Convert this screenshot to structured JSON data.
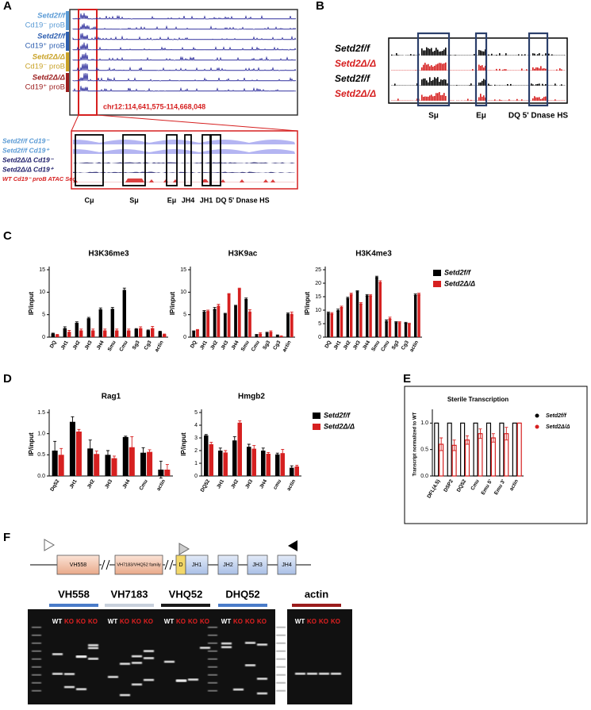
{
  "panel_labels": [
    "A",
    "B",
    "C",
    "D",
    "E",
    "F"
  ],
  "panel_a": {
    "tracks": [
      {
        "genotype": "Setd2f/f",
        "cells": "Cd19⁻ proB",
        "color": "#5b9bd5"
      },
      {
        "genotype": "Setd2f/f",
        "cells": "Cd19⁺ proB",
        "color": "#2e5fb0"
      },
      {
        "genotype": "Setd2Δ/Δ",
        "cells": "Cd19⁻ proB",
        "color": "#c9a227"
      },
      {
        "genotype": "Setd2Δ/Δ",
        "cells": "Cd19⁺ proB",
        "color": "#9b1c1c"
      }
    ],
    "locus": "chr12:114,641,575-114,668,048",
    "zoom_tracks": [
      {
        "label": "Setd2f/f Cd19⁻",
        "color": "#5b9bd5"
      },
      {
        "label": "Setd2f/f Cd19⁺",
        "color": "#5b9bd5"
      },
      {
        "label": "Setd2Δ/Δ Cd19⁻",
        "color": "#1f1f6b"
      },
      {
        "label": "Setd2Δ/Δ Cd19⁺",
        "color": "#1f1f6b"
      },
      {
        "label": "WT Cd19⁻ proB ATAC Seq",
        "color": "#d62020"
      }
    ],
    "regions": [
      "Cμ",
      "Sμ",
      "Eμ",
      "JH4",
      "JH1",
      "DQ 5' Dnase HS"
    ]
  },
  "panel_b": {
    "tracks": [
      {
        "label": "Setd2f/f",
        "color": "#000000"
      },
      {
        "label": "Setd2Δ/Δ",
        "color": "#d62020"
      },
      {
        "label": "Setd2f/f",
        "color": "#000000"
      },
      {
        "label": "Setd2Δ/Δ",
        "color": "#d62020"
      }
    ],
    "regions": [
      "Sμ",
      "Eμ",
      "DQ 5' Dnase HS"
    ]
  },
  "chart_data": [
    {
      "type": "bar",
      "title": "H3K36me3",
      "ylabel": "IP/input",
      "categories": [
        "DQ",
        "JH1",
        "JH2",
        "JH3",
        "JH4",
        "Smu",
        "Cmu",
        "Sg3",
        "Cg3",
        "actin"
      ],
      "series": [
        {
          "name": "Setd2f/f",
          "color": "#000000",
          "values": [
            0.8,
            2,
            3.2,
            4.2,
            6.2,
            6.3,
            10.5,
            1.8,
            1.5,
            1.2
          ],
          "errors": [
            0.1,
            0.3,
            0.2,
            0.2,
            0.3,
            0.3,
            0.4,
            0.1,
            0.1,
            0.1
          ]
        },
        {
          "name": "Setd2Δ/Δ",
          "color": "#d62020",
          "values": [
            0.5,
            1.2,
            1.5,
            1.5,
            1.5,
            1.5,
            1.5,
            2,
            2,
            0.6
          ],
          "errors": [
            0.1,
            0.3,
            0.3,
            0.3,
            0.3,
            0.3,
            0.3,
            0.3,
            0.4,
            0.1
          ]
        }
      ],
      "ylim": [
        0,
        15
      ],
      "yticks": [
        0,
        5,
        10,
        15
      ]
    },
    {
      "type": "bar",
      "title": "H3K9ac",
      "ylabel": "IP/input",
      "categories": [
        "DQ",
        "JH1",
        "JH2",
        "JH3",
        "JH4",
        "Smu",
        "Cmu",
        "Sg3",
        "Cg3",
        "actin"
      ],
      "series": [
        {
          "name": "Setd2f/f",
          "color": "#000000",
          "values": [
            1.3,
            5.7,
            6.3,
            5.2,
            7,
            8.5,
            0.5,
            1,
            0.4,
            5.2
          ],
          "errors": [
            0.1,
            0.2,
            0.3,
            0.1,
            0.1,
            0.2,
            0.1,
            0.1,
            0.1,
            0.2
          ]
        },
        {
          "name": "Setd2Δ/Δ",
          "color": "#d62020",
          "values": [
            1.6,
            5.8,
            7,
            9.6,
            10.8,
            5.7,
            0.8,
            1.2,
            0.2,
            5.2
          ],
          "errors": [
            0.1,
            0.2,
            0.3,
            0.1,
            0.1,
            0.4,
            0.2,
            0.2,
            0.1,
            0.4
          ]
        }
      ],
      "ylim": [
        0,
        15
      ],
      "yticks": [
        0,
        5,
        10,
        15
      ]
    },
    {
      "type": "bar",
      "title": "H3K4me3",
      "ylabel": "IP/input",
      "categories": [
        "DQ",
        "JH1",
        "JH2",
        "JH3",
        "JH4",
        "Smu",
        "Cmu",
        "Sg3",
        "Cg3",
        "actin"
      ],
      "series": [
        {
          "name": "Setd2f/f",
          "color": "#000000",
          "values": [
            9,
            10,
            14.5,
            17,
            15.5,
            22.3,
            6,
            5.5,
            5.3,
            15.7
          ],
          "errors": [
            0.3,
            0.4,
            0.3,
            0.2,
            0.3,
            0.3,
            0.4,
            0.2,
            0.2,
            0.3
          ]
        },
        {
          "name": "Setd2Δ/Δ",
          "color": "#d62020",
          "values": [
            8.8,
            11.2,
            16,
            12.5,
            15.5,
            20.5,
            7,
            5.5,
            5,
            16
          ],
          "errors": [
            0.3,
            0.3,
            0.3,
            0.3,
            0.3,
            0.4,
            0.4,
            0.2,
            0.2,
            0.3
          ]
        }
      ],
      "ylim": [
        0,
        25
      ],
      "yticks": [
        0,
        5,
        10,
        15,
        20,
        25
      ],
      "legend": "right"
    },
    {
      "type": "bar",
      "title": "Rag1",
      "ylabel": "IP/input",
      "categories": [
        "Dq52",
        "JH1",
        "JH2",
        "JH3",
        "JH4",
        "Cmu",
        "actin"
      ],
      "series": [
        {
          "name": "Setd2f/f",
          "color": "#000000",
          "values": [
            0.6,
            1.28,
            0.65,
            0.5,
            0.92,
            0.55,
            0.15
          ],
          "errors": [
            0.22,
            0.12,
            0.2,
            0.1,
            0.02,
            0.12,
            0.2
          ]
        },
        {
          "name": "Setd2Δ/Δ",
          "color": "#d62020",
          "values": [
            0.5,
            1.05,
            0.52,
            0.42,
            0.68,
            0.57,
            0.15
          ],
          "errors": [
            0.15,
            0.05,
            0.07,
            0.05,
            0.25,
            0.05,
            0.12
          ]
        }
      ],
      "ylim": [
        0,
        1.5
      ],
      "yticks": [
        {
          "value": 0,
          "label": "0.0"
        },
        0.5,
        {
          "value": 1,
          "label": "1.0"
        },
        1.5
      ]
    },
    {
      "type": "bar",
      "title": "Hmgb2",
      "ylabel": "IP/input",
      "categories": [
        "DQ52",
        "JH1",
        "JH2",
        "JH3",
        "JH4",
        "cmu",
        "actin"
      ],
      "series": [
        {
          "name": "Setd2f/f",
          "color": "#000000",
          "values": [
            3.2,
            2.0,
            2.8,
            2.3,
            2.0,
            1.7,
            0.65
          ],
          "errors": [
            0.07,
            0.2,
            0.3,
            0.2,
            0.2,
            0.1,
            0.15
          ]
        },
        {
          "name": "Setd2Δ/Δ",
          "color": "#d62020",
          "values": [
            2.5,
            1.85,
            4.2,
            2.15,
            1.75,
            1.8,
            0.75
          ],
          "errors": [
            0.15,
            0.15,
            0.15,
            0.25,
            0.1,
            0.3,
            0.1
          ]
        }
      ],
      "ylim": [
        0,
        5
      ],
      "yticks": [
        0,
        1,
        2,
        3,
        4,
        5
      ],
      "legend": "right"
    },
    {
      "type": "bar",
      "title": "Sterile Transcription",
      "ylabel": "Transcript normalized to WT",
      "bar_style": "outline",
      "categories": [
        "DFL(4.5)",
        "DSP2",
        "DQ52",
        "Cmu",
        "Emu 5'",
        "Emu 3'",
        "actin"
      ],
      "series": [
        {
          "name": "Setd2f/f",
          "color": "#000000",
          "values": [
            1,
            1,
            1,
            1,
            1,
            1,
            1
          ]
        },
        {
          "name": "Setd2Δ/Δ",
          "color": "#d62020",
          "values": [
            0.6,
            0.58,
            0.68,
            0.8,
            0.72,
            0.8,
            1.0
          ],
          "errors": [
            0.12,
            0.1,
            0.08,
            0.09,
            0.08,
            0.12,
            0.0
          ]
        }
      ],
      "ylim": [
        0,
        1.2
      ],
      "yticks": [
        {
          "value": 0,
          "label": "0.0"
        },
        0.5,
        {
          "value": 1,
          "label": "1.0"
        }
      ],
      "legend": "right"
    }
  ],
  "panel_f": {
    "segments": [
      "VH558",
      "VH7183/VHQ52 family",
      "D",
      "JH1",
      "JH2",
      "JH3",
      "JH4"
    ],
    "gels": [
      {
        "primer": "VH558",
        "color": "#4a7cc9",
        "lanes": [
          "WT",
          "KO",
          "KO",
          "KO"
        ]
      },
      {
        "primer": "VH7183",
        "color": "#c8d0dc",
        "lanes": [
          "WT",
          "KO",
          "KO",
          "KO"
        ]
      },
      {
        "primer": "VHQ52",
        "color": "#1a1a1a",
        "lanes": [
          "WT",
          "KO",
          "KO",
          "KO"
        ]
      },
      {
        "primer": "DHQ52",
        "color": "#4a7cc9",
        "lanes": [
          "WT",
          "KO",
          "KO",
          "KO"
        ]
      },
      {
        "primer": "actin",
        "color": "#9b1c1c",
        "lanes": [
          "WT",
          "KO",
          "KO",
          "KO"
        ]
      }
    ]
  }
}
